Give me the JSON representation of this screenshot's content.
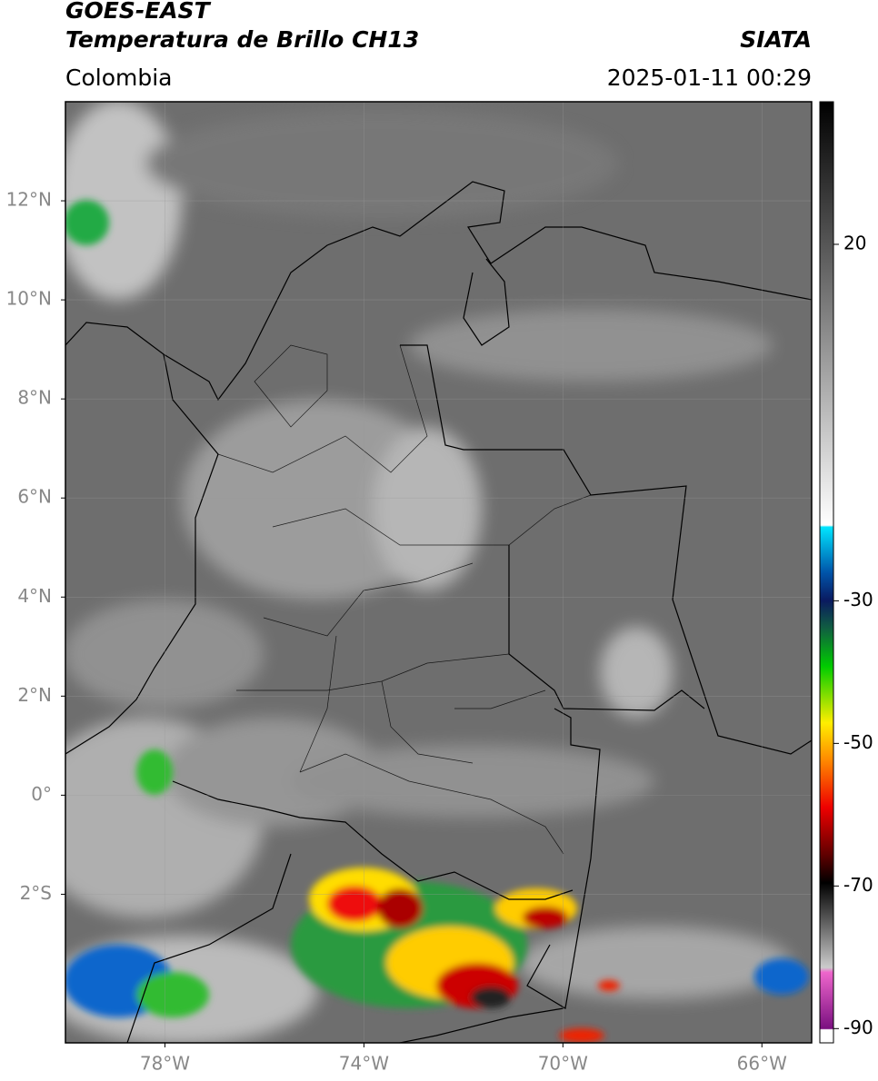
{
  "header": {
    "satellite": "GOES-EAST",
    "product": "Temperatura de Brillo CH13",
    "source": "SIATA",
    "region": "Colombia",
    "datetime": "2025-01-11 00:29"
  },
  "map": {
    "xlim": [
      -80,
      -65
    ],
    "ylim": [
      -5,
      14
    ],
    "xticks": [
      {
        "value": -78,
        "label": "78°W"
      },
      {
        "value": -74,
        "label": "74°W"
      },
      {
        "value": -70,
        "label": "70°W"
      },
      {
        "value": -66,
        "label": "66°W"
      }
    ],
    "yticks": [
      {
        "value": 12,
        "label": "12°N"
      },
      {
        "value": 10,
        "label": "10°N"
      },
      {
        "value": 8,
        "label": "8°N"
      },
      {
        "value": 6,
        "label": "6°N"
      },
      {
        "value": 4,
        "label": "4°N"
      },
      {
        "value": 2,
        "label": "2°N"
      },
      {
        "value": 0,
        "label": "0°"
      },
      {
        "value": -2,
        "label": "2°S"
      }
    ],
    "grid": true
  },
  "colorbar": {
    "lim": [
      -92,
      40
    ],
    "ticks": [
      20,
      -30,
      -50,
      -70,
      -90
    ]
  }
}
